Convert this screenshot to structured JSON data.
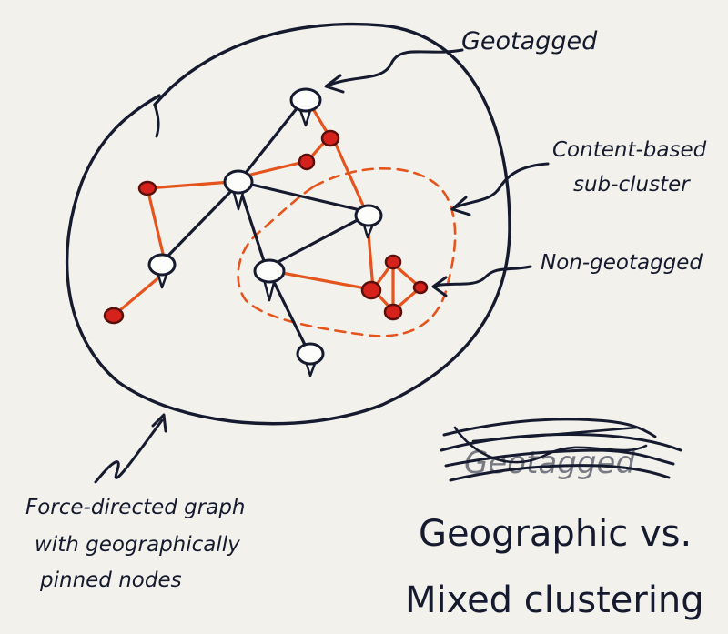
{
  "labels": {
    "geotagged": "Geotagged",
    "content_based_line1": "Content-based",
    "content_based_line2": "sub-cluster",
    "non_geotagged": "Non-geotagged",
    "crossed_out": "Geotagged",
    "force_line1": "Force-directed graph",
    "force_line2": "with geographically",
    "force_line3": "pinned nodes",
    "title_line1": "Geographic vs.",
    "title_line2": "Mixed clustering"
  },
  "colors": {
    "ink": "#151a2e",
    "orange_edge": "#e4541c",
    "red_node": "#d5221a",
    "paper": "#f3f1ec"
  },
  "icons": {
    "geotagged_node": "map-pin-icon",
    "non_geotagged_node": "red-dot-icon"
  }
}
